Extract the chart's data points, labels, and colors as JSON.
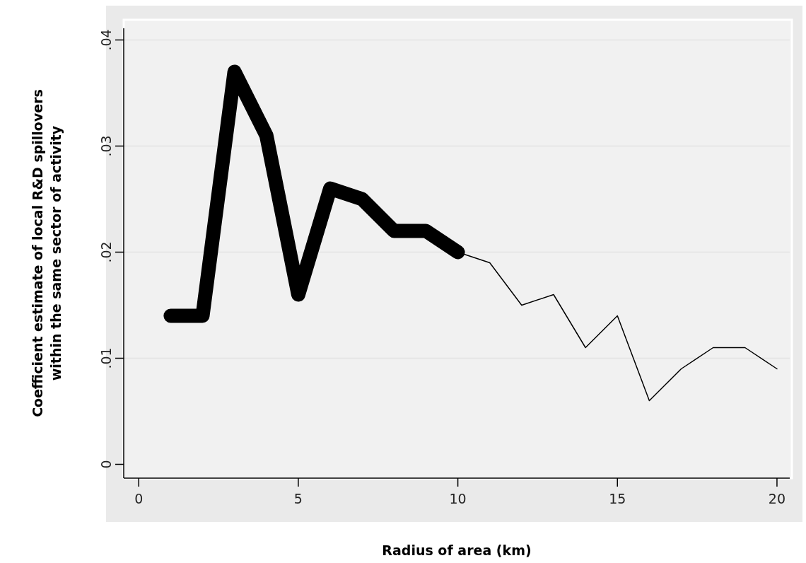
{
  "chart_data": {
    "type": "line",
    "xlabel": "Radius of area (km)",
    "ylabel": "Coefficient estimate of local R&D spillovers\nwithin the same sector of activity",
    "series": [
      {
        "color": "#000000",
        "x": [
          1,
          2,
          3,
          4,
          5,
          6,
          7,
          8,
          9,
          10
        ],
        "values": [
          0.014,
          0.014,
          0.037,
          0.031,
          0.016,
          0.026,
          0.025,
          0.022,
          0.022,
          0.02
        ]
      },
      {
        "color": "#000000",
        "x": [
          10,
          11,
          12,
          13,
          14,
          15,
          16,
          17,
          18,
          19,
          20
        ],
        "values": [
          0.02,
          0.019,
          0.015,
          0.016,
          0.011,
          0.014,
          0.006,
          0.009,
          0.011,
          0.011,
          0.009
        ]
      }
    ],
    "xlim": [
      -0.47,
      20.4
    ],
    "xticks": [
      0,
      5,
      10,
      15,
      20
    ],
    "ylim": [
      -0.0013,
      0.0411
    ],
    "yticks": [
      0,
      {
        "value": 0.01,
        "label": ".01"
      },
      {
        "value": 0.02,
        "label": ".02"
      },
      {
        "value": 0.03,
        "label": ".03"
      },
      {
        "value": 0.04,
        "label": ".04"
      }
    ],
    "grid": "y",
    "marker": "none",
    "line_style": "solid"
  }
}
